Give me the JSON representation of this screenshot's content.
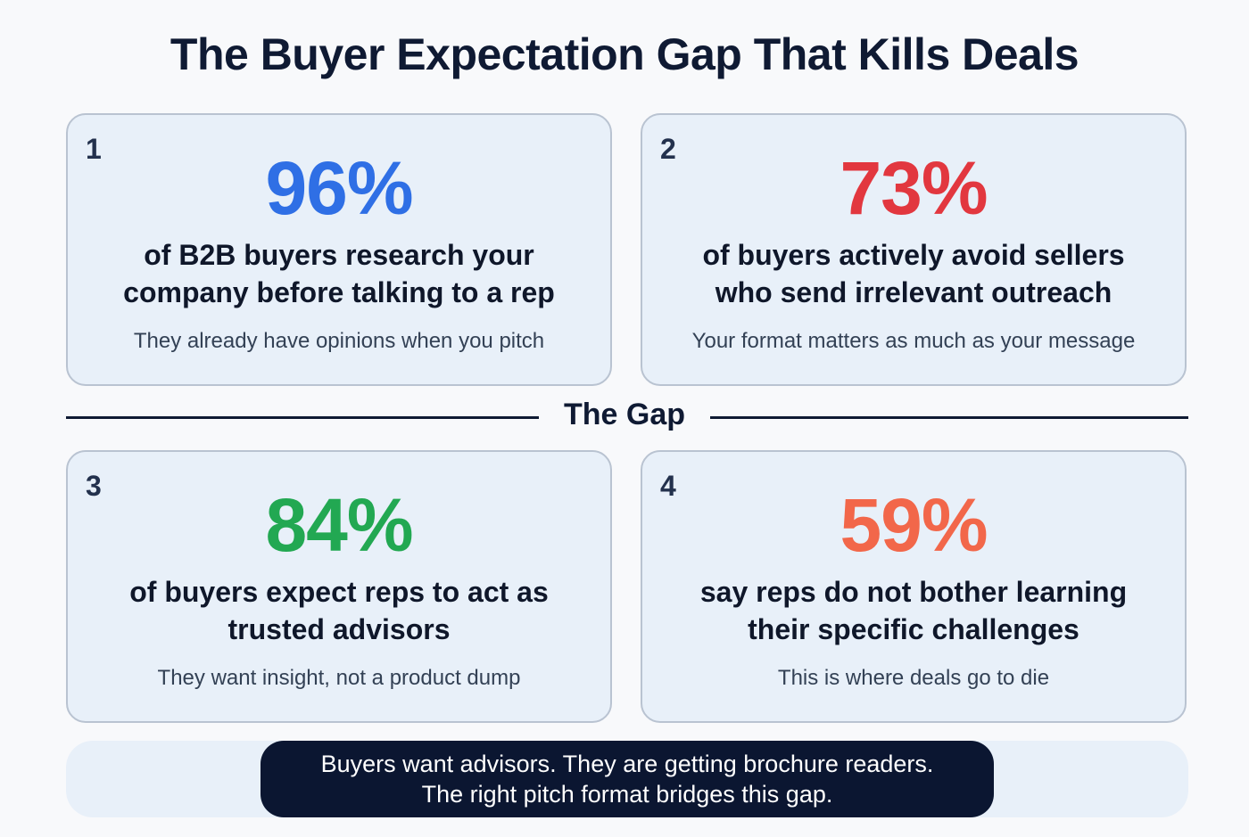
{
  "title": "The Buyer Expectation Gap That Kills Deals",
  "colors": {
    "card1_stat": "#2f6fe5",
    "card2_stat": "#e2373f",
    "card3_stat": "#22a852",
    "card4_stat": "#f2674a",
    "card_bg": "#e8f0f9",
    "card_border": "#b9c3d1",
    "navy": "#0b1631"
  },
  "cards": [
    {
      "number": "1",
      "stat": "96%",
      "headline_line1": "of B2B buyers research your",
      "headline_line2": "company before talking to a rep",
      "subtext": "They already have opinions when you pitch"
    },
    {
      "number": "2",
      "stat": "73%",
      "headline_line1": "of buyers actively avoid sellers",
      "headline_line2": "who send irrelevant outreach",
      "subtext": "Your format matters as much as your message"
    },
    {
      "number": "3",
      "stat": "84%",
      "headline_line1": "of buyers expect reps to act as",
      "headline_line2": "trusted advisors",
      "subtext": "They want insight, not a product dump"
    },
    {
      "number": "4",
      "stat": "59%",
      "headline_line1": "say reps do not bother learning",
      "headline_line2": "their specific challenges",
      "subtext": "This is where deals go to die"
    }
  ],
  "divider": {
    "label": "The Gap"
  },
  "footer": {
    "line1": "Buyers want advisors. They are getting brochure readers.",
    "line2": "The right pitch format bridges this gap."
  }
}
